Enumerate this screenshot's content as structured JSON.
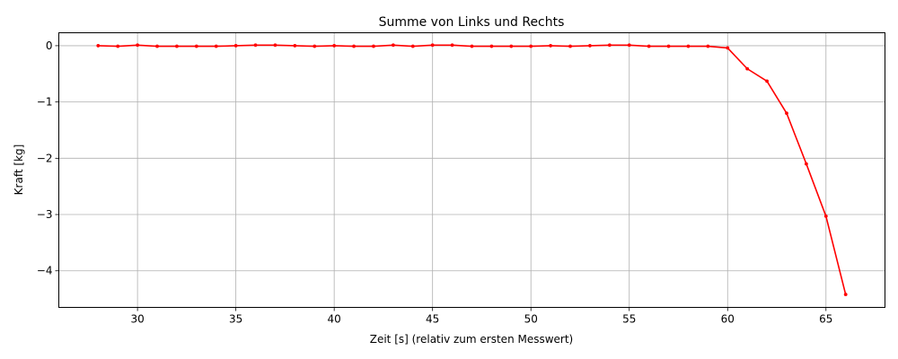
{
  "chart_data": {
    "type": "line",
    "title": "Summe von Links und Rechts",
    "xlabel": "Zeit [s] (relativ zum ersten Messwert)",
    "ylabel": "Kraft [kg]",
    "xlim": [
      26,
      68
    ],
    "ylim": [
      -4.65,
      0.23
    ],
    "xticks": [
      30,
      35,
      40,
      45,
      50,
      55,
      60,
      65
    ],
    "yticks": [
      0,
      -1,
      -2,
      -3,
      -4
    ],
    "ytick_labels": [
      "0",
      "−1",
      "−2",
      "−3",
      "−4"
    ],
    "grid": true,
    "series": [
      {
        "color": "#ff0000",
        "x": [
          28,
          29,
          30,
          31,
          32,
          33,
          34,
          35,
          36,
          37,
          38,
          39,
          40,
          41,
          42,
          43,
          44,
          45,
          46,
          47,
          48,
          49,
          50,
          51,
          52,
          53,
          54,
          55,
          56,
          57,
          58,
          59,
          60,
          61,
          62,
          63,
          64,
          65,
          66
        ],
        "y": [
          0.0,
          -0.01,
          0.01,
          -0.01,
          -0.01,
          -0.01,
          -0.01,
          0.0,
          0.01,
          0.01,
          0.0,
          -0.01,
          0.0,
          -0.01,
          -0.01,
          0.01,
          -0.01,
          0.01,
          0.01,
          -0.01,
          -0.01,
          -0.01,
          -0.01,
          0.0,
          -0.01,
          0.0,
          0.01,
          0.01,
          -0.01,
          -0.01,
          -0.01,
          -0.01,
          -0.04,
          -0.41,
          -0.63,
          -1.2,
          -2.1,
          -3.03,
          -4.42
        ]
      }
    ]
  }
}
